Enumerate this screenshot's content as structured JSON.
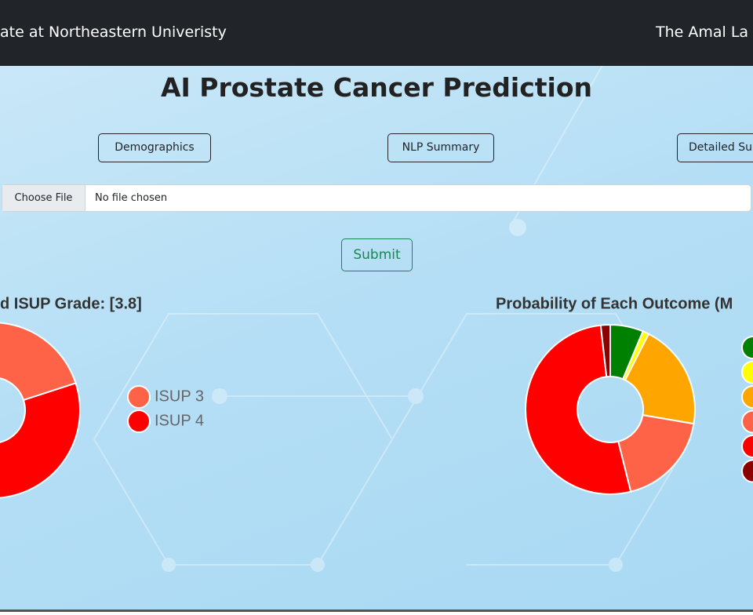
{
  "nav": {
    "brand": "ate at Northeastern Univeristy",
    "right": "The Amal La"
  },
  "title": "AI Prostate Cancer Prediction",
  "buttons": [
    "Demographics",
    "NLP Summary",
    "Detailed Su"
  ],
  "file_input": {
    "button": "Choose File",
    "status": "No file chosen"
  },
  "submit": "Submit",
  "chart_data": [
    {
      "type": "doughnut",
      "title": "d ISUP Grade: [3.8]",
      "categories": [
        "ISUP 3",
        "ISUP 4"
      ],
      "values": [
        20,
        80
      ],
      "colors": [
        "#ff6347",
        "#ff0000"
      ]
    },
    {
      "type": "doughnut",
      "title": "Probability of Each Outcome (M",
      "categories": [
        null,
        null,
        null,
        null,
        null,
        null
      ],
      "values": [
        6.3,
        1.2,
        20.2,
        18.4,
        52.1,
        1.8
      ],
      "colors": [
        "#008000",
        "#ffff00",
        "#ffa500",
        "#ff6347",
        "#ff0000",
        "#8b0000"
      ]
    }
  ]
}
